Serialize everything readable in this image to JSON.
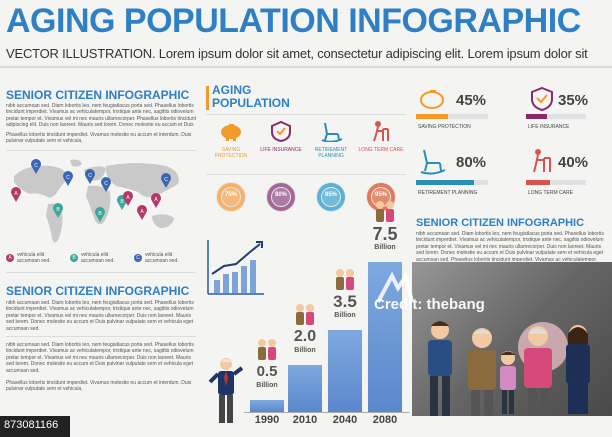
{
  "header": {
    "title": "AGING POPULATION INFOGRAPHIC",
    "subtitle": "VECTOR ILLUSTRATION. Lorem ipsum dolor sit amet, consectetur adipiscing elit. Lorem ipsum dolor sit"
  },
  "left_top": {
    "heading": "SENIOR CITIZEN INFOGRAPHIC",
    "para1": "nibh accumsan sed. Diam lobortis leo, nem feugiatlacus porta sed. Phasellus lobortis tincidunt imperdiet. Vivamus ac vehiculatempor, tristique ante nec, sagittis odiovelum pretar tempor et. Vivamus vel mi nec mauris ullarnecorper. Phasellus lobortis tincidunt adipiscing elit. Duis non laoreet. Mauris sed lorem. Donec molestie eu accum et Duis pulvinar vulputate sem et vehicula eget accumsan sed.",
    "para2": "Phasellus lobortis tincidunt imperdiet. Vivamus molestie eu accum et interdum. Duis pulvinar vulputate sem et vehicula.",
    "map_heading": "SENIOR CITIZEN INFOGRAPHIC",
    "legend": [
      {
        "letter": "A",
        "text": "vehicula eliit accumsan sed.",
        "color": "#b6386a"
      },
      {
        "letter": "B",
        "text": "vehicula eliit accumsan sed.",
        "color": "#3aa89a"
      },
      {
        "letter": "C",
        "text": "vehicula eliit accumsan sed.",
        "color": "#3b66b4"
      }
    ],
    "map_pins": [
      "C",
      "C",
      "C",
      "C",
      "A",
      "A",
      "B",
      "B",
      "A",
      "A",
      "B",
      "C"
    ]
  },
  "left_bottom": {
    "heading": "SENIOR CITIZEN INFOGRAPHIC",
    "para1": "nibh accumsan sed. Diam lobortis leo, nem feugiatlacus porta sed. Phasellus lobortis tincidunt imperdiet. Vivamus ac vehiculatempor, tristique ante nec, sagittis odiovelum pretar tempor et. Vivamus vel mi nec mauris ullarnecorper. Duis non laoreet. Mauris sed lorem. Donec molestie eu accum et Duis pulvinar vulputate sem et vehicula eget accumsan sed.",
    "para2": "nibh accumsan sed. Diam lobortis leo, nem feugiatlacus porta sed. Phasellus lobortis tincidunt imperdiet. Vivamus ac vehiculatempor, tristique ante nec, sagittis odiovelum pretar tempor et. Vivamus vel mi nec mauris ullarnecorper. Duis non laoreet. Mauris sed lorem. Donec molestie eu accum et Duis pulvinar vulputate sem et vehicula eget accumsan sed.",
    "para3": "Phasellus lobortis tincidunt imperdiet. Vivamus molestie eu accum et interdum. Duis pulvinar vulputate sem et vehicula."
  },
  "middle": {
    "heading_line1": "AGING",
    "heading_line2": "POPULATION",
    "icons": [
      {
        "label": "SAVING PROTECTION",
        "color": "#f39a2b",
        "pct": "75%",
        "ring": "#f6b06a"
      },
      {
        "label": "LIFE INSURANCE",
        "color": "#8b2a6b",
        "pct": "80%",
        "ring": "#a3679a"
      },
      {
        "label": "RETIREMENT PLANNING",
        "color": "#2a8fb8",
        "pct": "85%",
        "ring": "#5ab3d6"
      },
      {
        "label": "LONG TERM CARE",
        "color": "#d9534f",
        "pct": "95%",
        "ring": "#e07b5a"
      }
    ]
  },
  "right_stats": [
    {
      "pct": "45%",
      "label": "SAVING PROTECTION",
      "color": "#f39a2b",
      "fill": 0.45
    },
    {
      "pct": "35%",
      "label": "LIFE INSURANCE",
      "color": "#8b2a6b",
      "fill": 0.35
    },
    {
      "pct": "80%",
      "label": "RETIREMENT PLANNING",
      "color": "#2a8fb8",
      "fill": 0.8
    },
    {
      "pct": "40%",
      "label": "LONG TERM CARE",
      "color": "#d9534f",
      "fill": 0.4
    }
  ],
  "right_text": {
    "heading": "SENIOR CITIZEN INFOGRAPHIC",
    "para": "nibh accumsan sed. Diam lobortis leo, nem feugiatlacus porta sed. Phasellus lobortis tincidunt imperdiet. Vivamus ac vehiculatempor, tristique ante nec, sagittis odiovelum pretar tempor et. Vivamus vel mi nec mauris ullarnecorper. Duis non laoreet. Mauris sed lorem. Donec molestie eu accum et Duis pulvinar vulputate sem et vehicula eget accumsan sed. Phasellus lobortis tincidunt imperdiet. Vivamus ac vehiculatempor."
  },
  "chart_data": {
    "type": "bar",
    "categories": [
      "1990",
      "2010",
      "2040",
      "2080"
    ],
    "values": [
      0.5,
      2.0,
      3.5,
      7.5
    ],
    "value_labels": [
      "0.5",
      "2.0",
      "3.5",
      "7.5"
    ],
    "unit_label": "Billion",
    "ylim": [
      0,
      8
    ]
  },
  "watermark": {
    "credit": "Credit: thebang"
  },
  "stock_id": "873081166"
}
